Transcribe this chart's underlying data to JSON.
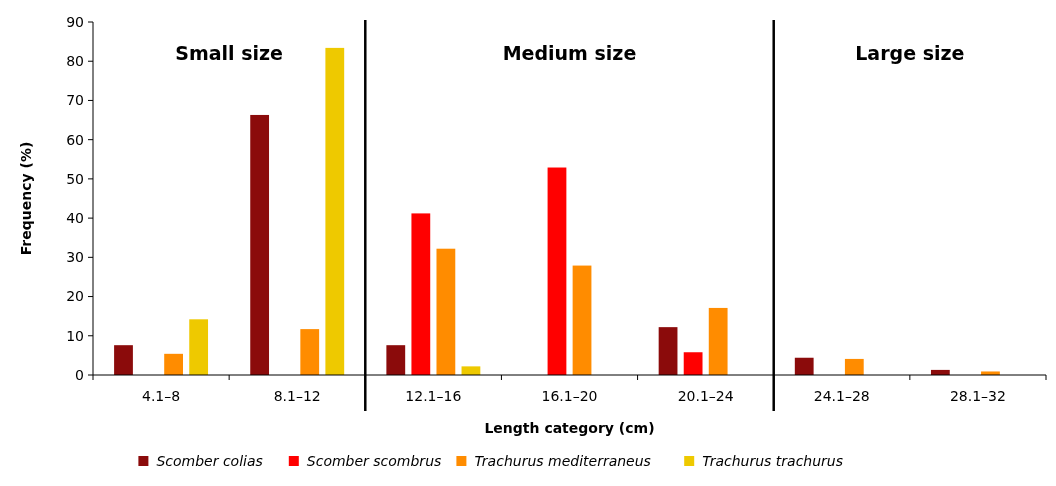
{
  "chart_data": {
    "type": "bar",
    "xlabel": "Length category (cm)",
    "ylabel": "Frequency (%)",
    "categories": [
      "4.1–8",
      "8.1–12",
      "12.1–16",
      "16.1–20",
      "20.1–24",
      "24.1–28",
      "28.1–32"
    ],
    "series": [
      {
        "name": "Scomber colias",
        "color": "#8b0b0b",
        "values": [
          7.6,
          66.3,
          7.6,
          0,
          12.2,
          4.4,
          1.3
        ]
      },
      {
        "name": "Scomber scombrus",
        "color": "#ff0000",
        "values": [
          0,
          0,
          41.2,
          52.9,
          5.8,
          0,
          0
        ]
      },
      {
        "name": "Trachurus mediterraneus",
        "color": "#ff8c00",
        "values": [
          5.4,
          11.7,
          32.2,
          27.9,
          17.1,
          4.1,
          0.9
        ]
      },
      {
        "name": "Trachurus trachurus",
        "color": "#eec900",
        "values": [
          14.2,
          83.4,
          2.2,
          0,
          0,
          0,
          0
        ]
      }
    ],
    "annotations": [
      "Small size",
      "Medium size",
      "Large size"
    ],
    "ylim": [
      0,
      90
    ],
    "yticks": [
      0,
      10,
      20,
      30,
      40,
      50,
      60,
      70,
      80,
      90
    ],
    "grid": false,
    "legend": "bottom"
  }
}
